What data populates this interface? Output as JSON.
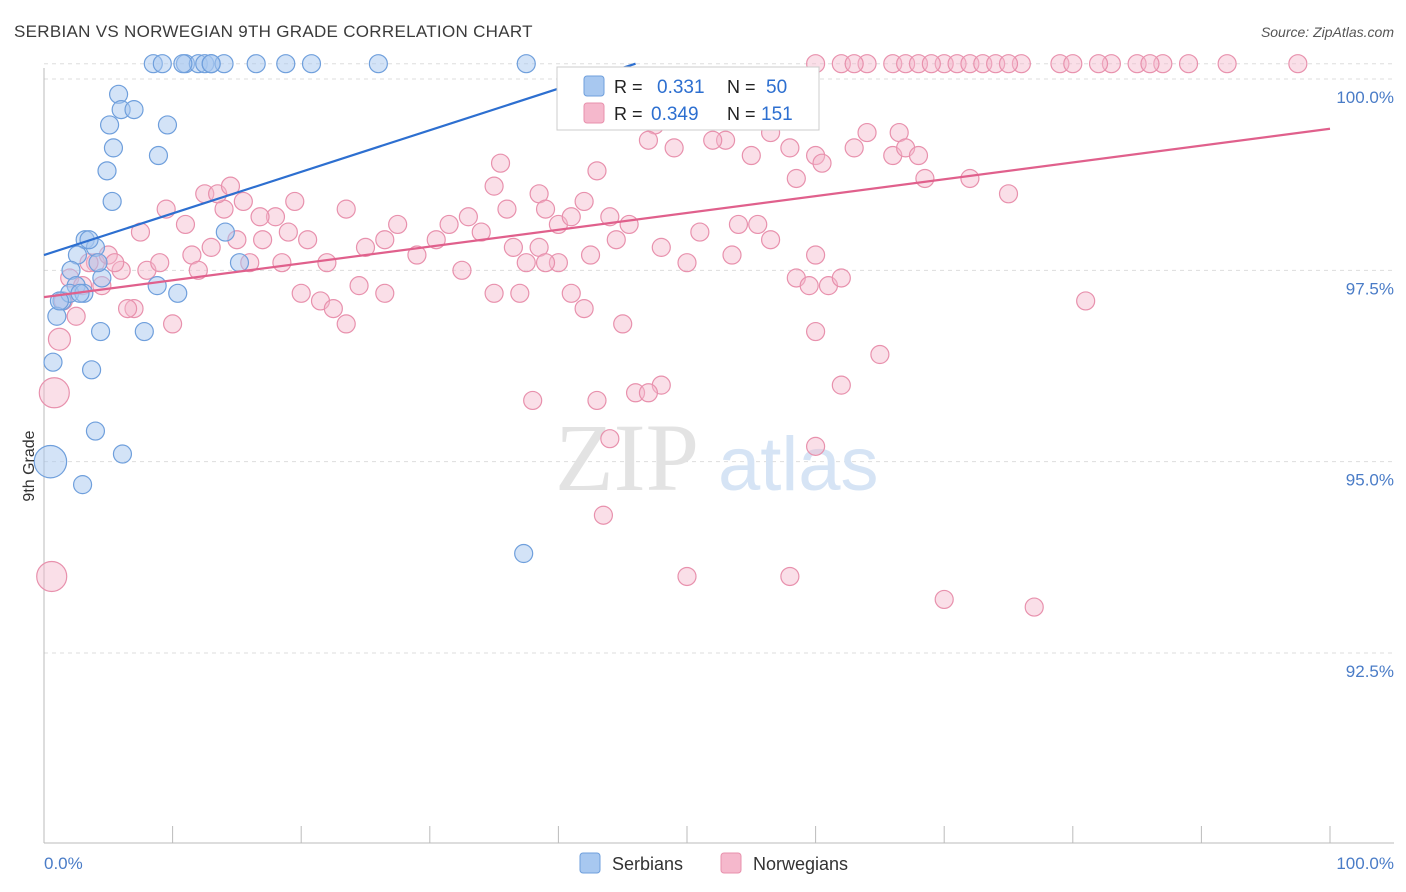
{
  "title": "SERBIAN VS NORWEGIAN 9TH GRADE CORRELATION CHART",
  "source": "Source: ZipAtlas.com",
  "watermark": {
    "zip": "ZIP",
    "atlas": "atlas"
  },
  "colors": {
    "serbians_fill": "#a8c8f0",
    "serbians_stroke": "#6f9fdc",
    "serbians_line": "#2d6fd0",
    "norwegians_fill": "#f5b8cc",
    "norwegians_stroke": "#e891ad",
    "norwegians_line": "#e0608c",
    "tick_label": "#4a7cc7",
    "grid": "#dddddd"
  },
  "legend_box": {
    "rows": [
      {
        "r_label": "R =",
        "r_value": "0.331",
        "n_label": "N =",
        "n_value": "50"
      },
      {
        "r_label": "R =",
        "r_value": "0.349",
        "n_label": "N =",
        "n_value": "151"
      }
    ]
  },
  "chart_data": {
    "type": "scatter",
    "title": "SERBIAN VS NORWEGIAN 9TH GRADE CORRELATION CHART",
    "xlabel": "",
    "ylabel": "9th Grade",
    "xlim": [
      0,
      100
    ],
    "ylim": [
      90.0,
      100.2
    ],
    "x_tick_labels": [
      "0.0%",
      "100.0%"
    ],
    "y_ticks": [
      {
        "value": 100.0,
        "label": "100.0%"
      },
      {
        "value": 97.5,
        "label": "97.5%"
      },
      {
        "value": 95.0,
        "label": "95.0%"
      },
      {
        "value": 92.5,
        "label": "92.5%"
      }
    ],
    "grid": "horizontal dashed",
    "legend_position": "bottom-center",
    "series": [
      {
        "name": "Serbians",
        "r": 0.331,
        "n": 50,
        "trend": {
          "x1": 0,
          "y1": 97.7,
          "x2": 46,
          "y2": 100.2
        },
        "points": [
          [
            8.5,
            100.2
          ],
          [
            9.2,
            100.2
          ],
          [
            11,
            100.2
          ],
          [
            12,
            100.2
          ],
          [
            12.5,
            100.2
          ],
          [
            13,
            100.2
          ],
          [
            14,
            100.2
          ],
          [
            16.5,
            100.2
          ],
          [
            18.8,
            100.2
          ],
          [
            20.8,
            100.2
          ],
          [
            26,
            100.2
          ],
          [
            37.5,
            100.2
          ],
          [
            5.8,
            99.8
          ],
          [
            6,
            99.6
          ],
          [
            7,
            99.6
          ],
          [
            5.1,
            99.4
          ],
          [
            9.6,
            99.4
          ],
          [
            5.4,
            99.1
          ],
          [
            8.9,
            99.0
          ],
          [
            4.9,
            98.8
          ],
          [
            5.3,
            98.4
          ],
          [
            14.1,
            98.0
          ],
          [
            3.2,
            97.9
          ],
          [
            4,
            97.8
          ],
          [
            2.6,
            97.7
          ],
          [
            2.1,
            97.5
          ],
          [
            4.5,
            97.4
          ],
          [
            15.2,
            97.6
          ],
          [
            8.8,
            97.3
          ],
          [
            10.4,
            97.2
          ],
          [
            2.5,
            97.3
          ],
          [
            1.4,
            97.1
          ],
          [
            2,
            97.2
          ],
          [
            3.1,
            97.2
          ],
          [
            1,
            96.9
          ],
          [
            4.4,
            96.7
          ],
          [
            7.8,
            96.7
          ],
          [
            0.7,
            96.3
          ],
          [
            3.7,
            96.2
          ],
          [
            4,
            95.4
          ],
          [
            6.1,
            95.1
          ],
          [
            0.5,
            95.0
          ],
          [
            3,
            94.7
          ],
          [
            37.3,
            93.8
          ],
          [
            1.2,
            97.1
          ],
          [
            2.8,
            97.2
          ],
          [
            3.5,
            97.9
          ],
          [
            4.2,
            97.6
          ],
          [
            13,
            100.2
          ],
          [
            10.8,
            100.2
          ]
        ],
        "sizes": [
          10,
          10,
          10,
          10,
          10,
          10,
          10,
          10,
          10,
          10,
          10,
          10,
          10,
          10,
          10,
          10,
          10,
          10,
          10,
          10,
          10,
          10,
          10,
          10,
          10,
          10,
          10,
          10,
          10,
          10,
          10,
          10,
          10,
          10,
          10,
          10,
          10,
          10,
          10,
          10,
          10,
          18,
          10,
          10,
          10,
          10,
          10,
          10,
          10,
          10
        ]
      },
      {
        "name": "Norwegians",
        "r": 0.349,
        "n": 151,
        "trend": {
          "x1": 0,
          "y1": 97.15,
          "x2": 100,
          "y2": 99.35
        },
        "points": [
          [
            60,
            100.2
          ],
          [
            62,
            100.2
          ],
          [
            64,
            100.2
          ],
          [
            66,
            100.2
          ],
          [
            67,
            100.2
          ],
          [
            68,
            100.2
          ],
          [
            70,
            100.2
          ],
          [
            71,
            100.2
          ],
          [
            72,
            100.2
          ],
          [
            73,
            100.2
          ],
          [
            76,
            100.2
          ],
          [
            79,
            100.2
          ],
          [
            83,
            100.2
          ],
          [
            85,
            100.2
          ],
          [
            87,
            100.2
          ],
          [
            89,
            100.2
          ],
          [
            92,
            100.2
          ],
          [
            97.5,
            100.2
          ],
          [
            74,
            100.2
          ],
          [
            80,
            100.2
          ],
          [
            82,
            100.2
          ],
          [
            69,
            100.2
          ],
          [
            63,
            100.2
          ],
          [
            75,
            100.2
          ],
          [
            86,
            100.2
          ],
          [
            56,
            99.8
          ],
          [
            55.5,
            99.6
          ],
          [
            47.5,
            99.4
          ],
          [
            53,
            99.2
          ],
          [
            56.5,
            99.3
          ],
          [
            47,
            99.2
          ],
          [
            60,
            99.0
          ],
          [
            58,
            99.1
          ],
          [
            64,
            99.3
          ],
          [
            63,
            99.1
          ],
          [
            66,
            99.0
          ],
          [
            60.5,
            98.9
          ],
          [
            35.5,
            98.9
          ],
          [
            36,
            98.3
          ],
          [
            43,
            98.8
          ],
          [
            58.5,
            98.7
          ],
          [
            68.5,
            98.7
          ],
          [
            38.5,
            98.5
          ],
          [
            42,
            98.4
          ],
          [
            44,
            98.2
          ],
          [
            35,
            98.6
          ],
          [
            39,
            98.3
          ],
          [
            40,
            98.1
          ],
          [
            9.5,
            98.3
          ],
          [
            11,
            98.1
          ],
          [
            13,
            97.8
          ],
          [
            14,
            98.3
          ],
          [
            15.5,
            98.4
          ],
          [
            17,
            97.9
          ],
          [
            18,
            98.2
          ],
          [
            19.5,
            98.4
          ],
          [
            20.5,
            97.9
          ],
          [
            22,
            97.6
          ],
          [
            23.5,
            98.3
          ],
          [
            25,
            97.8
          ],
          [
            26.5,
            97.9
          ],
          [
            27.5,
            98.1
          ],
          [
            29,
            97.7
          ],
          [
            30.5,
            97.9
          ],
          [
            31.5,
            98.1
          ],
          [
            32.5,
            97.5
          ],
          [
            33,
            98.2
          ],
          [
            34,
            98.0
          ],
          [
            36.5,
            97.8
          ],
          [
            37.5,
            97.6
          ],
          [
            38.5,
            97.8
          ],
          [
            40,
            97.6
          ],
          [
            41,
            98.2
          ],
          [
            42.5,
            97.7
          ],
          [
            44.5,
            97.9
          ],
          [
            45.5,
            98.1
          ],
          [
            48,
            97.8
          ],
          [
            50,
            97.6
          ],
          [
            51,
            98.0
          ],
          [
            53.5,
            97.7
          ],
          [
            54,
            98.1
          ],
          [
            55.5,
            98.1
          ],
          [
            56.5,
            97.9
          ],
          [
            58.5,
            97.4
          ],
          [
            59.5,
            97.3
          ],
          [
            60,
            97.7
          ],
          [
            61,
            97.3
          ],
          [
            62,
            97.4
          ],
          [
            11.5,
            97.7
          ],
          [
            12,
            97.5
          ],
          [
            12.5,
            98.5
          ],
          [
            13.5,
            98.5
          ],
          [
            14.5,
            98.6
          ],
          [
            15,
            97.9
          ],
          [
            16,
            97.6
          ],
          [
            16.8,
            98.2
          ],
          [
            18.5,
            97.6
          ],
          [
            19,
            98.0
          ],
          [
            20,
            97.2
          ],
          [
            21.5,
            97.1
          ],
          [
            22.5,
            97.0
          ],
          [
            23.5,
            96.8
          ],
          [
            24.5,
            97.3
          ],
          [
            26.5,
            97.2
          ],
          [
            2,
            97.4
          ],
          [
            3,
            97.3
          ],
          [
            4,
            97.6
          ],
          [
            5,
            97.7
          ],
          [
            6,
            97.5
          ],
          [
            7,
            97.0
          ],
          [
            8,
            97.5
          ],
          [
            9,
            97.6
          ],
          [
            10,
            96.8
          ],
          [
            1.5,
            97.1
          ],
          [
            2.5,
            96.9
          ],
          [
            1.2,
            96.6
          ],
          [
            0.8,
            95.9
          ],
          [
            0.6,
            93.5
          ],
          [
            7.5,
            98.0
          ],
          [
            6.5,
            97.0
          ],
          [
            4.5,
            97.3
          ],
          [
            3.5,
            97.6
          ],
          [
            5.5,
            97.6
          ],
          [
            35,
            97.2
          ],
          [
            37,
            97.2
          ],
          [
            39,
            97.6
          ],
          [
            41,
            97.2
          ],
          [
            42,
            97.0
          ],
          [
            45,
            96.8
          ],
          [
            60,
            96.7
          ],
          [
            65,
            96.4
          ],
          [
            46,
            95.9
          ],
          [
            48,
            96.0
          ],
          [
            47,
            95.9
          ],
          [
            38,
            95.8
          ],
          [
            43,
            95.8
          ],
          [
            44,
            95.3
          ],
          [
            60,
            95.2
          ],
          [
            62,
            96.0
          ],
          [
            43.5,
            94.3
          ],
          [
            50,
            93.5
          ],
          [
            58,
            93.5
          ],
          [
            70,
            93.2
          ],
          [
            77,
            93.1
          ],
          [
            81,
            97.1
          ],
          [
            72,
            98.7
          ],
          [
            75,
            98.5
          ],
          [
            55,
            99.0
          ],
          [
            52,
            99.2
          ],
          [
            49,
            99.1
          ],
          [
            66.5,
            99.3
          ],
          [
            67,
            99.1
          ],
          [
            68,
            99.0
          ]
        ]
      }
    ]
  },
  "legend": {
    "items": [
      {
        "label": "Serbians"
      },
      {
        "label": "Norwegians"
      }
    ]
  }
}
